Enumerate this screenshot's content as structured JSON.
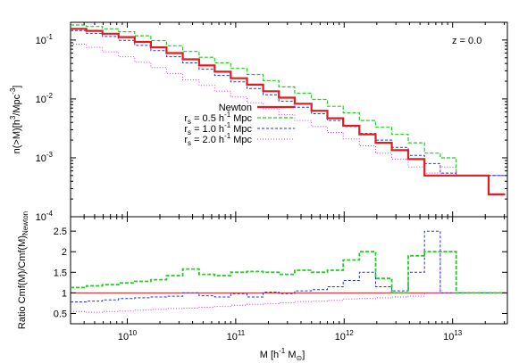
{
  "chart_data": [
    {
      "type": "line",
      "panel": "top",
      "step": true,
      "x_scale": "log",
      "y_scale": "log",
      "xlim": [
        3000000000.0,
        32000000000000.0
      ],
      "ylim": [
        0.0001,
        0.2
      ],
      "ylabel_main": "n(>M)",
      "ylabel_unit": "[h",
      "ylabel_exp": "3",
      "ylabel_rest": "/Mpc",
      "ylabel_exp2": "-3",
      "ylabel_end": "]",
      "annotation": "z = 0.0",
      "y_ticks": [
        {
          "base": "10",
          "exp": "-1",
          "value": 0.1
        },
        {
          "base": "10",
          "exp": "-2",
          "value": 0.01
        },
        {
          "base": "10",
          "exp": "-3",
          "value": 0.001
        },
        {
          "base": "10",
          "exp": "-4",
          "value": 0.0001
        }
      ],
      "edges": [
        3000000000.0,
        4200000000.0,
        5900000000.0,
        8300000000.0,
        11700000000.0,
        16500000000.0,
        23000000000.0,
        32500000000.0,
        46000000000.0,
        64000000000.0,
        90000000000.0,
        127000000000.0,
        179000000000.0,
        250000000000.0,
        350000000000.0,
        500000000000.0,
        700000000000.0,
        980000000000.0,
        1380000000000.0,
        1950000000000.0,
        2750000000000.0,
        3900000000000.0,
        5500000000000.0,
        7700000000000.0,
        10800000000000.0,
        15200000000000.0,
        21500000000000.0,
        30500000000000.0
      ],
      "series": [
        {
          "name": "Newton",
          "color": "#e41a1c",
          "dash": "",
          "width": 2.2,
          "values": [
            0.155,
            0.143,
            0.128,
            0.112,
            0.093,
            0.075,
            0.06,
            0.047,
            0.037,
            0.029,
            0.0225,
            0.0175,
            0.0135,
            0.0105,
            0.0083,
            0.0063,
            0.0047,
            0.0035,
            0.0025,
            0.0018,
            0.00135,
            0.00095,
            0.0005,
            0.0005,
            0.0005,
            0.0005,
            0.00024
          ]
        },
        {
          "name_lead": "r",
          "name_sub": "s",
          "name_rest": " = 0.5 h",
          "name_exp": "-1",
          "name_end": " Mpc",
          "color": "#22cc22",
          "dash": "4,2",
          "width": 1.2,
          "values": [
            0.18,
            0.17,
            0.155,
            0.138,
            0.118,
            0.098,
            0.08,
            0.064,
            0.051,
            0.041,
            0.033,
            0.026,
            0.0205,
            0.016,
            0.0125,
            0.0098,
            0.0075,
            0.0058,
            0.0043,
            0.0033,
            0.0025,
            0.0018,
            0.0012,
            0.001,
            0.0005,
            0.0005,
            0.0005
          ]
        },
        {
          "name_lead": "r",
          "name_sub": "s",
          "name_rest": " = 1.0 h",
          "name_exp": "-1",
          "name_end": " Mpc",
          "color": "#2233dd",
          "dash": "3,2",
          "width": 1.0,
          "values": [
            0.145,
            0.13,
            0.115,
            0.099,
            0.081,
            0.066,
            0.052,
            0.041,
            0.032,
            0.025,
            0.0195,
            0.015,
            0.0118,
            0.0091,
            0.0072,
            0.0056,
            0.0043,
            0.0034,
            0.0026,
            0.002,
            0.0015,
            0.0011,
            0.0008,
            0.00055,
            0.0005,
            0.0005,
            0.0005
          ]
        },
        {
          "name_lead": "r",
          "name_sub": "s",
          "name_rest": " = 2.0 h",
          "name_exp": "-1",
          "name_end": " Mpc",
          "color": "#dd33dd",
          "dash": "1,2",
          "width": 1.0,
          "values": [
            0.085,
            0.075,
            0.063,
            0.052,
            0.042,
            0.034,
            0.027,
            0.021,
            0.017,
            0.0135,
            0.0108,
            0.0086,
            0.0068,
            0.0054,
            0.0043,
            0.0034,
            0.0027,
            0.0021,
            0.0016,
            0.0012,
            0.00095,
            0.0007,
            0.00055,
            0.0007,
            0.0005,
            0.0005,
            0.0005
          ]
        }
      ]
    },
    {
      "type": "line",
      "panel": "bottom",
      "step": true,
      "x_scale": "log",
      "xlim": [
        3000000000.0,
        32000000000000.0
      ],
      "ylim": [
        0.25,
        2.85
      ],
      "xlabel_main": "M [h",
      "xlabel_exp": "-1",
      "xlabel_mid": " M",
      "xlabel_sun": "⊙",
      "xlabel_end": "]",
      "ylabel_main": "Ratio Cmf(M)/Cmf(M)",
      "ylabel_sub": "Newton",
      "y_ticks": [
        "0.5",
        "1",
        "1.5",
        "2",
        "2.5"
      ],
      "y_tick_values": [
        0.5,
        1,
        1.5,
        2,
        2.5
      ],
      "x_ticks": [
        {
          "base": "10",
          "exp": "10",
          "value": 10000000000.0
        },
        {
          "base": "10",
          "exp": "11",
          "value": 100000000000.0
        },
        {
          "base": "10",
          "exp": "12",
          "value": 1000000000000.0
        },
        {
          "base": "10",
          "exp": "13",
          "value": 10000000000000.0
        }
      ],
      "series": [
        {
          "color": "#e41a1c",
          "dash": "",
          "width": 1.0,
          "values": [
            1,
            1,
            1,
            1,
            1,
            1,
            1,
            1,
            1,
            1,
            1,
            1,
            1,
            1,
            1,
            1,
            1,
            1,
            1,
            1,
            1,
            1,
            1,
            1,
            1,
            1,
            1
          ]
        },
        {
          "color": "#22cc22",
          "dash": "4,2",
          "width": 1.8,
          "values": [
            1.13,
            1.17,
            1.2,
            1.24,
            1.28,
            1.32,
            1.42,
            1.58,
            1.45,
            1.42,
            1.5,
            1.52,
            1.5,
            1.45,
            1.55,
            1.5,
            1.55,
            1.8,
            2.0,
            1.35,
            1.0,
            1.9,
            2.0,
            2.0,
            1.0,
            1.0,
            1.0
          ]
        },
        {
          "color": "#2233dd",
          "dash": "3,2",
          "width": 1.0,
          "values": [
            0.78,
            0.8,
            0.83,
            0.86,
            0.88,
            0.9,
            0.92,
            1.0,
            0.93,
            0.9,
            0.98,
            0.9,
            1.02,
            0.98,
            1.05,
            1.08,
            1.15,
            1.3,
            1.5,
            1.15,
            1.05,
            1.5,
            2.5,
            1.0,
            1.0,
            1.0,
            1.0
          ]
        },
        {
          "color": "#dd33dd",
          "dash": "1,2",
          "width": 1.0,
          "values": [
            0.55,
            0.53,
            0.55,
            0.56,
            0.58,
            0.6,
            0.62,
            0.63,
            0.65,
            0.67,
            0.7,
            0.72,
            0.74,
            0.76,
            0.79,
            0.8,
            0.82,
            0.85,
            0.86,
            0.88,
            0.9,
            0.92,
            1.0,
            2.0,
            1.0,
            1.0,
            1.0
          ]
        }
      ]
    }
  ]
}
